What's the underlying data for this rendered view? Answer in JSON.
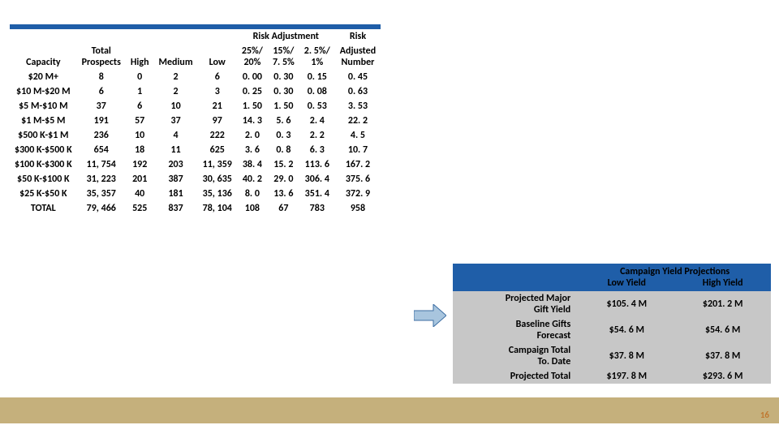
{
  "risk_table": {
    "header_bar_color": "#1f5ea8",
    "group_header": "Risk Adjustment",
    "columns": [
      "Capacity",
      "Total Prospects",
      "High",
      "Medium",
      "Low",
      "25%/ 20%",
      "15%/ 7. 5%",
      "2. 5%/ 1%",
      "Risk Adjusted Number"
    ],
    "rows": [
      [
        "$20 M+",
        "8",
        "0",
        "2",
        "6",
        "0. 00",
        "0. 30",
        "0. 15",
        "0. 45"
      ],
      [
        "$10 M-$20 M",
        "6",
        "1",
        "2",
        "3",
        "0. 25",
        "0. 30",
        "0. 08",
        "0. 63"
      ],
      [
        "$5 M-$10 M",
        "37",
        "6",
        "10",
        "21",
        "1. 50",
        "1. 50",
        "0. 53",
        "3. 53"
      ],
      [
        "$1 M-$5 M",
        "191",
        "57",
        "37",
        "97",
        "14. 3",
        "5. 6",
        "2. 4",
        "22. 2"
      ],
      [
        "$500 K-$1 M",
        "236",
        "10",
        "4",
        "222",
        "2. 0",
        "0. 3",
        "2. 2",
        "4. 5"
      ],
      [
        "$300 K-$500 K",
        "654",
        "18",
        "11",
        "625",
        "3. 6",
        "0. 8",
        "6. 3",
        "10. 7"
      ],
      [
        "$100 K-$300 K",
        "11, 754",
        "192",
        "203",
        "11, 359",
        "38. 4",
        "15. 2",
        "113. 6",
        "167. 2"
      ],
      [
        "$50 K-$100 K",
        "31, 223",
        "201",
        "387",
        "30, 635",
        "40. 2",
        "29. 0",
        "306. 4",
        "375. 6"
      ],
      [
        "$25 K-$50 K",
        "35, 357",
        "40",
        "181",
        "35, 136",
        "8. 0",
        "13. 6",
        "351. 4",
        "372. 9"
      ],
      [
        "TOTAL",
        "79, 466",
        "525",
        "837",
        "78, 104",
        "108",
        "67",
        "783",
        "958"
      ]
    ]
  },
  "campaign": {
    "title": "Campaign Yield Projections",
    "col_low": "Low Yield",
    "col_high": "High Yield",
    "rows": [
      {
        "label": "Projected Major Gift Yield",
        "low": "$105. 4 M",
        "high": "$201. 2 M"
      },
      {
        "label": "Baseline Gifts Forecast",
        "low": "$54. 6 M",
        "high": "$54. 6 M"
      },
      {
        "label": "Campaign Total To. Date",
        "low": "$37. 8 M",
        "high": "$37. 8 M"
      },
      {
        "label": "Projected Total",
        "low": "$197. 8 M",
        "high": "$293. 6 M"
      }
    ],
    "bg_color": "#c7c7c7",
    "header_color": "#1f5ea8"
  },
  "arrow_fill": "#a8c5de",
  "arrow_stroke": "#3d6ea3",
  "tan_band_color": "#c5b07c",
  "page_number": "16"
}
